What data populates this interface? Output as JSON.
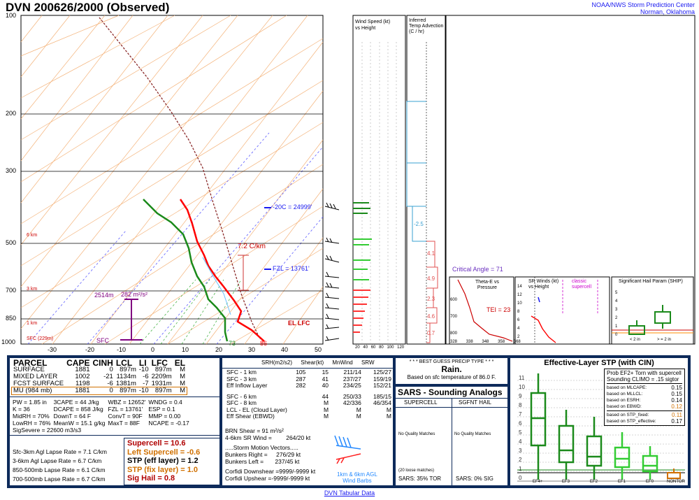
{
  "header": {
    "title": "DVN  200626/2000  (Observed)",
    "org1": "NOAA/NWS Storm Prediction Center",
    "org2": "Norman, Oklahoma"
  },
  "skewt": {
    "pressure_labels": [
      "100",
      "200",
      "300",
      "500",
      "700",
      "850",
      "1000"
    ],
    "temp_labels": [
      "-30",
      "-20",
      "-10",
      "0",
      "10",
      "20",
      "30",
      "40",
      "50"
    ],
    "height_labels": [
      "6 km",
      "3 km",
      "1 km",
      "SFC (229m)"
    ],
    "annotations": {
      "lapse": "7.2 C/km",
      "fzl": "FZL = 13761'",
      "m20": "-20C = 24999'",
      "eil": "2514m",
      "eil2": "282 m²/s²",
      "sfc": "SFC",
      "td": "73",
      "t": "86",
      "lfc": "EL LFC"
    }
  },
  "panels": {
    "wind": {
      "title": "Wind Speed (kt)",
      "subtitle": "vs Height",
      "xticks": [
        "20",
        "40",
        "60",
        "80",
        "100",
        "120"
      ]
    },
    "temp_adv": {
      "title": "Inferred",
      "line2": "Temp Advection",
      "line3": "(C / hr)",
      "values": [
        "-2.5",
        "4.1",
        "4.9",
        "2.3",
        "4.6",
        "0.7"
      ]
    },
    "critical_angle": "Critical Angle = 71",
    "theta": {
      "title": "Theta-E vs",
      "subtitle": "Pressure",
      "tei": "TEI = 23",
      "yticks": [
        "600",
        "700",
        "800",
        "900"
      ],
      "xticks": [
        "328",
        "338",
        "348",
        "358",
        "368"
      ]
    },
    "srwinds": {
      "title": "SR Winds (kt)",
      "subtitle": "vs Height",
      "classic": "classic",
      "supercell": "supercell",
      "yticks": [
        "14",
        "12",
        "10",
        "8",
        "6",
        "4",
        "2"
      ]
    },
    "ship": {
      "title": "Significant Hail Param (SHIP)",
      "xlabels": [
        "< 2 in",
        "> = 2 in"
      ],
      "yticks": [
        "5",
        "4",
        "3",
        "2",
        "1",
        "0"
      ]
    }
  },
  "parcel": {
    "headers": [
      "PARCEL",
      "CAPE",
      "CINH",
      "LCL",
      "LI",
      "LFC",
      "EL"
    ],
    "rows": [
      [
        "SURFACE",
        "1881",
        "0",
        "897m",
        "-10",
        "897m",
        "M"
      ],
      [
        "MIXED LAYER",
        "1002",
        "-21",
        "1134m",
        "-6",
        "2209m",
        "M"
      ],
      [
        "FCST SURFACE",
        "1198",
        "-6",
        "1381m",
        "-7",
        "1931m",
        "M"
      ],
      [
        "MU   (984 mb)",
        "1881",
        "0",
        "897m",
        "-10",
        "897m",
        "M"
      ]
    ],
    "params": [
      [
        "PW = 1.85  in",
        "3CAPE = 44 J/kg",
        "WBZ = 12652'",
        "WNDG = 0.4"
      ],
      [
        "K = 36",
        "DCAPE = 858 J/kg",
        "FZL = 13761'",
        "ESP = 0.1"
      ],
      [
        "MidRH = 70%",
        "DownT = 64 F",
        "ConvT = 90F",
        "MMP = 0.00"
      ],
      [
        "LowRH = 76%",
        "MeanW = 15.1 g/kg",
        "MaxT = 88F",
        "NCAPE = -0.17"
      ]
    ],
    "sigsevere": "SigSevere = 22600 m3/s3",
    "lapse": [
      [
        "Sfc-3km Agl Lapse Rate =",
        "7.1 C/km"
      ],
      [
        "3-6km Agl Lapse Rate =",
        "6.7 C/km"
      ],
      [
        "850-500mb Lapse Rate =",
        "6.1 C/km"
      ],
      [
        "700-500mb Lapse Rate =",
        "6.7 C/km"
      ]
    ],
    "composite": [
      {
        "label": "Supercell = 10.6",
        "color": "#b00000"
      },
      {
        "label": "Left Supercell = -0.6",
        "color": "#d07000"
      },
      {
        "label": "STP (eff layer) = 1.2",
        "color": "#000000"
      },
      {
        "label": "STP (fix layer) = 1.0",
        "color": "#d07000"
      },
      {
        "label": "Sig Hail = 0.8",
        "color": "#b00000"
      }
    ]
  },
  "kinematic": {
    "headers": [
      "SRH(m2/s2)",
      "Shear(kt)",
      "MnWind",
      "SRW"
    ],
    "rows": [
      [
        "SFC - 1 km",
        "105",
        "15",
        "211/14",
        "125/27"
      ],
      [
        "SFC - 3 km",
        "287",
        "41",
        "237/27",
        "159/19"
      ],
      [
        "Eff Inflow Layer",
        "282",
        "40",
        "234/25",
        "152/21"
      ],
      [
        "",
        "",
        " ",
        "",
        ""
      ],
      [
        "SFC - 6 km",
        "",
        "44",
        "250/33",
        "185/15"
      ],
      [
        "SFC - 8 km",
        "",
        "M",
        "42/336",
        "46/354"
      ],
      [
        "LCL - EL (Cloud Layer)",
        "",
        "M",
        "M",
        "M"
      ],
      [
        "Eff Shear (EBWD)",
        "",
        "M",
        "M",
        "M"
      ]
    ],
    "brn": "BRN Shear =  91 m²/s²",
    "srwind": [
      "4-6km SR Wind =",
      "264/20 kt"
    ],
    "smv": ".....Storm Motion Vectors.....",
    "bunkers": [
      [
        "Bunkers Right =",
        "276/29 kt"
      ],
      [
        "Bunkers Left =",
        "237/45 kt"
      ]
    ],
    "corfidi": [
      [
        "Corfidi Downshear =",
        "9999/-9999 kt"
      ],
      [
        "Corfidi Upshear =",
        "-9999/-9999 kt"
      ]
    ],
    "barbs": [
      "1km & 6km AGL",
      "Wind Barbs"
    ]
  },
  "precip": {
    "header": "* * * BEST GUESS PRECIP TYPE * * *",
    "type": "Rain.",
    "note": "Based on sfc temperature of 86.0 F."
  },
  "sars": {
    "title": "SARS - Sounding Analogs",
    "col1": "SUPERCELL",
    "col2": "SGFNT HAIL",
    "nq1": "No Quality Matches",
    "nq2": "No Quality Matches",
    "loose": "(20 loose matches)",
    "tor": "SARS:  35% TOR",
    "sig": "SARS:  0% SIG"
  },
  "stp": {
    "title": "Effective-Layer STP (with CIN)",
    "prob": "Prob EF2+ Torn with supercell",
    "climo": "Sounding CLIMO = .15 sigtor",
    "based": [
      [
        "based on MLCAPE:",
        "0.15"
      ],
      [
        "based on MLLCL:",
        "0.15"
      ],
      [
        "based on ESRH:",
        "0.14"
      ],
      [
        "based on EBWD:",
        "0.12"
      ],
      [
        "based on STP_fixed:",
        "0.11"
      ],
      [
        "based on STP_effective:",
        "0.17"
      ]
    ],
    "yticks": [
      "11",
      "10",
      "9",
      "8",
      "7",
      "6",
      "5",
      "4",
      "3",
      "2",
      "1",
      "0"
    ],
    "xlabels": [
      "EF4+",
      "EF3",
      "EF2",
      "EF1",
      "EF0",
      "NONTOR"
    ]
  },
  "footer": "DVN Tabular Data",
  "colors": {
    "temp": "#ff0000",
    "dew": "#1b8a1b",
    "navy": "#0d2a5a",
    "blue": "#1a1af0",
    "orange": "#ff9933"
  }
}
